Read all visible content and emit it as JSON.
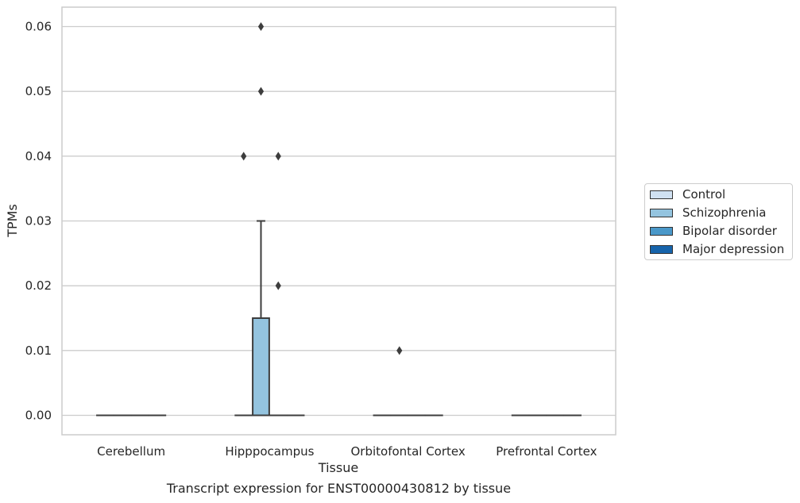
{
  "chart_data": {
    "type": "box",
    "caption": "Transcript expression for ENST00000430812 by tissue",
    "xlabel": "Tissue",
    "ylabel": "TPMs",
    "ylim": [
      -0.003,
      0.063
    ],
    "yticks": [
      0.0,
      0.01,
      0.02,
      0.03,
      0.04,
      0.05,
      0.06
    ],
    "ytick_labels": [
      "0.00",
      "0.01",
      "0.02",
      "0.03",
      "0.04",
      "0.05",
      "0.06"
    ],
    "grid": true,
    "legend_position": "right, outside plot area",
    "categories": [
      "Cerebellum",
      "Hipppocampus",
      "Orbitofontal Cortex",
      "Prefrontal Cortex"
    ],
    "series": [
      {
        "name": "Control",
        "color": "#d0e1f2",
        "boxes": [
          {
            "q1": 0,
            "median": 0,
            "q3": 0,
            "whisker_low": 0,
            "whisker_high": 0,
            "outliers": []
          },
          {
            "q1": 0,
            "median": 0,
            "q3": 0,
            "whisker_low": 0,
            "whisker_high": 0,
            "outliers": [
              0.04
            ]
          },
          {
            "q1": 0,
            "median": 0,
            "q3": 0,
            "whisker_low": 0,
            "whisker_high": 0,
            "outliers": []
          },
          {
            "q1": 0,
            "median": 0,
            "q3": 0,
            "whisker_low": 0,
            "whisker_high": 0,
            "outliers": []
          }
        ]
      },
      {
        "name": "Schizophrenia",
        "color": "#94c4df",
        "boxes": [
          {
            "q1": 0,
            "median": 0,
            "q3": 0,
            "whisker_low": 0,
            "whisker_high": 0,
            "outliers": []
          },
          {
            "q1": 0,
            "median": 0,
            "q3": 0.015,
            "whisker_low": 0,
            "whisker_high": 0.03,
            "outliers": [
              0.06,
              0.05
            ]
          },
          {
            "q1": 0,
            "median": 0,
            "q3": 0,
            "whisker_low": 0,
            "whisker_high": 0,
            "outliers": [
              0.01
            ]
          },
          {
            "q1": 0,
            "median": 0,
            "q3": 0,
            "whisker_low": 0,
            "whisker_high": 0,
            "outliers": []
          }
        ]
      },
      {
        "name": "Bipolar disorder",
        "color": "#4a98c9",
        "boxes": [
          {
            "q1": 0,
            "median": 0,
            "q3": 0,
            "whisker_low": 0,
            "whisker_high": 0,
            "outliers": []
          },
          {
            "q1": 0,
            "median": 0,
            "q3": 0,
            "whisker_low": 0,
            "whisker_high": 0,
            "outliers": [
              0.04,
              0.02
            ]
          },
          {
            "q1": 0,
            "median": 0,
            "q3": 0,
            "whisker_low": 0,
            "whisker_high": 0,
            "outliers": []
          },
          {
            "q1": 0,
            "median": 0,
            "q3": 0,
            "whisker_low": 0,
            "whisker_high": 0,
            "outliers": []
          }
        ]
      },
      {
        "name": "Major depression",
        "color": "#1764ab",
        "boxes": [
          {
            "q1": 0,
            "median": 0,
            "q3": 0,
            "whisker_low": 0,
            "whisker_high": 0,
            "outliers": []
          },
          {
            "q1": 0,
            "median": 0,
            "q3": 0,
            "whisker_low": 0,
            "whisker_high": 0,
            "outliers": []
          },
          {
            "q1": 0,
            "median": 0,
            "q3": 0,
            "whisker_low": 0,
            "whisker_high": 0,
            "outliers": []
          },
          {
            "q1": 0,
            "median": 0,
            "q3": 0,
            "whisker_low": 0,
            "whisker_high": 0,
            "outliers": []
          }
        ]
      }
    ]
  }
}
